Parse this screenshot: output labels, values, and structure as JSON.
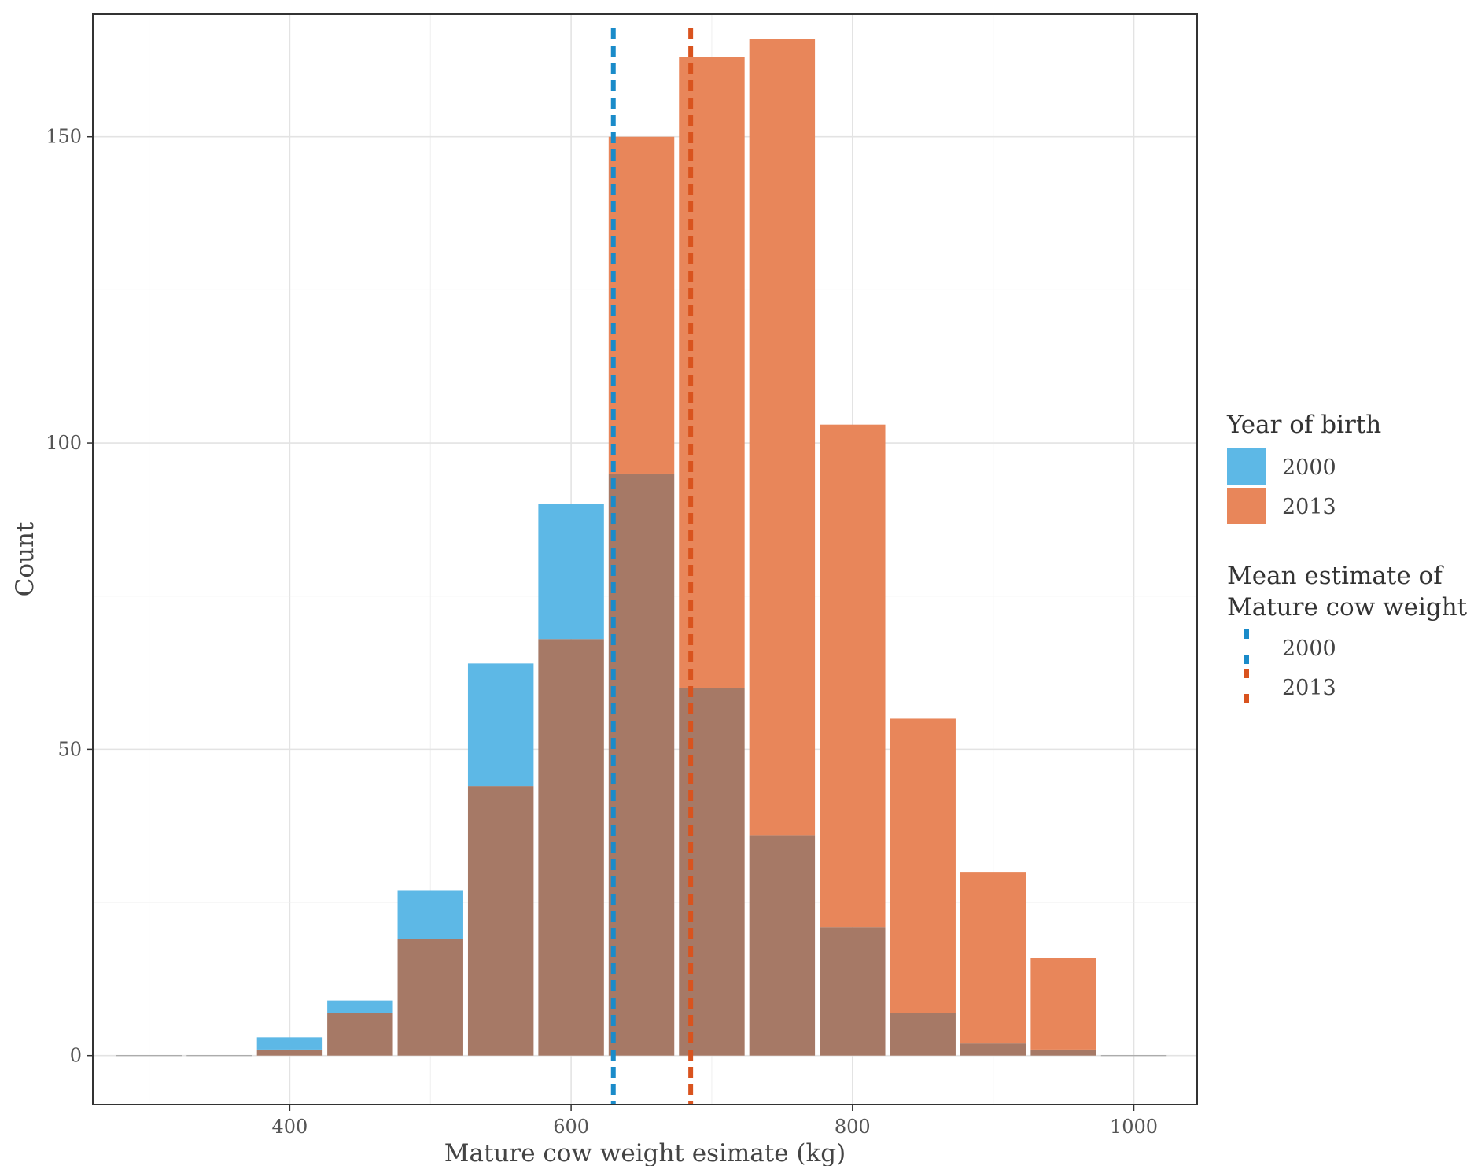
{
  "chart_data": {
    "type": "bar",
    "subtype": "overlapping histogram",
    "xlabel": "Mature cow weight esimate (kg)",
    "ylabel": "Count",
    "xlim": [
      260,
      1045
    ],
    "ylim": [
      -8,
      170
    ],
    "x_ticks": [
      400,
      600,
      800,
      1000
    ],
    "y_ticks": [
      0,
      50,
      100,
      150
    ],
    "grid": true,
    "bin_width": 50,
    "bin_centers": [
      300,
      350,
      400,
      450,
      500,
      550,
      600,
      650,
      700,
      750,
      800,
      850,
      900,
      950,
      1000
    ],
    "series": [
      {
        "name": "2000",
        "color": "#5db8e6",
        "values": [
          0,
          0,
          3,
          9,
          27,
          64,
          90,
          95,
          60,
          36,
          21,
          7,
          2,
          1,
          0
        ]
      },
      {
        "name": "2013",
        "color": "#e8865a",
        "values": [
          0,
          0,
          1,
          7,
          19,
          44,
          68,
          150,
          163,
          166,
          103,
          55,
          30,
          16,
          0
        ]
      }
    ],
    "overlap_color": "#a67966",
    "mean_lines": [
      {
        "name": "2000",
        "value": 630,
        "color": "#1a8bc9"
      },
      {
        "name": "2013",
        "value": 685,
        "color": "#d9531e"
      }
    ],
    "legend": {
      "position": "right",
      "fill_title": "Year of birth",
      "fill_items": [
        "2000",
        "2013"
      ],
      "line_title_lines": [
        "Mean estimate of",
        "Mature cow weight"
      ],
      "line_items": [
        "2000",
        "2013"
      ]
    }
  }
}
